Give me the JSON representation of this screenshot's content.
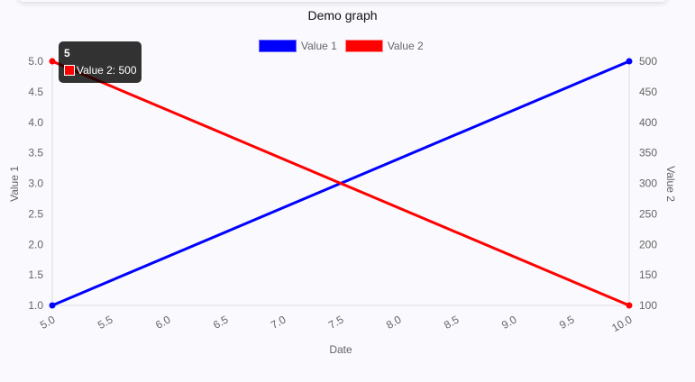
{
  "title": "Demo graph",
  "legend": [
    {
      "label": "Value 1",
      "color": "#0000ff"
    },
    {
      "label": "Value 2",
      "color": "#ff0000"
    }
  ],
  "tooltip": {
    "title": "5",
    "body": "Value 2: 500",
    "color": "#ff0000"
  },
  "axes": {
    "x_label": "Date",
    "y_left_label": "Value 1",
    "y_right_label": "Value 2",
    "x_ticks": [
      "5.0",
      "5.5",
      "6.0",
      "6.5",
      "7.0",
      "7.5",
      "8.0",
      "8.5",
      "9.0",
      "9.5",
      "10.0"
    ],
    "y_left_ticks": [
      "5.0",
      "4.5",
      "4.0",
      "3.5",
      "3.0",
      "2.5",
      "2.0",
      "1.5",
      "1.0"
    ],
    "y_right_ticks": [
      "500",
      "450",
      "400",
      "350",
      "300",
      "250",
      "200",
      "150",
      "100"
    ]
  },
  "chart_data": {
    "type": "line",
    "title": "Demo graph",
    "xlabel": "Date",
    "ylabel": "Value 1",
    "y2label": "Value 2",
    "x": [
      5,
      10
    ],
    "series": [
      {
        "name": "Value 1",
        "axis": "left",
        "color": "#0000ff",
        "values": [
          1,
          5
        ]
      },
      {
        "name": "Value 2",
        "axis": "right",
        "color": "#ff0000",
        "values": [
          500,
          100
        ]
      }
    ],
    "xlim": [
      5,
      10
    ],
    "ylim": [
      1,
      5
    ],
    "y2lim": [
      100,
      500
    ],
    "legend_position": "top",
    "grid": false
  }
}
